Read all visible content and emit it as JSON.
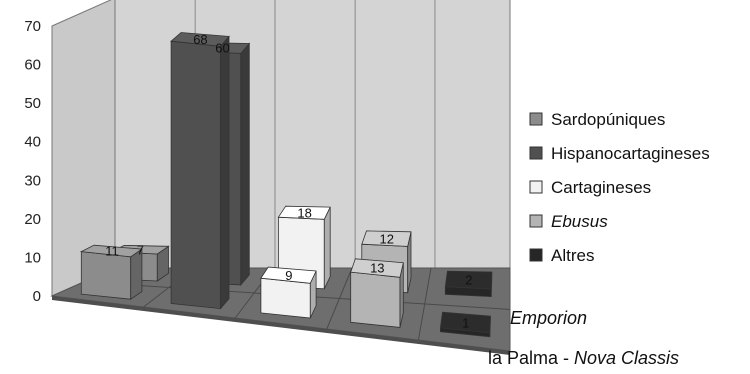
{
  "chart_data": {
    "type": "bar",
    "categories": [
      "Emporion",
      "la Palma - Nova Classis"
    ],
    "category_parts": [
      [
        {
          "text": "Emporion",
          "italic": true
        }
      ],
      [
        {
          "text": "la Palma - ",
          "italic": false
        },
        {
          "text": "Nova Classis",
          "italic": true
        }
      ]
    ],
    "series": [
      {
        "name": "Sardopúniques",
        "values": [
          7,
          11
        ],
        "color": "#8c8c8c"
      },
      {
        "name": "Hispanocartagineses",
        "values": [
          60,
          68
        ],
        "color": "#505050"
      },
      {
        "name": "Cartagineses",
        "values": [
          18,
          9
        ],
        "color": "#f2f2f2"
      },
      {
        "name": "Ebusus",
        "name_italic": true,
        "values": [
          12,
          13
        ],
        "color": "#b4b4b4"
      },
      {
        "name": "Altres",
        "values": [
          2,
          1
        ],
        "color": "#262626"
      }
    ],
    "ylim": [
      0,
      70
    ],
    "yticks": [
      0,
      10,
      20,
      30,
      40,
      50,
      60,
      70
    ],
    "grid": true,
    "legend_position": "right",
    "title": "",
    "xlabel": "",
    "ylabel": "",
    "wall_color": "#d4d4d4",
    "floor_color": "#6e6e6e"
  }
}
